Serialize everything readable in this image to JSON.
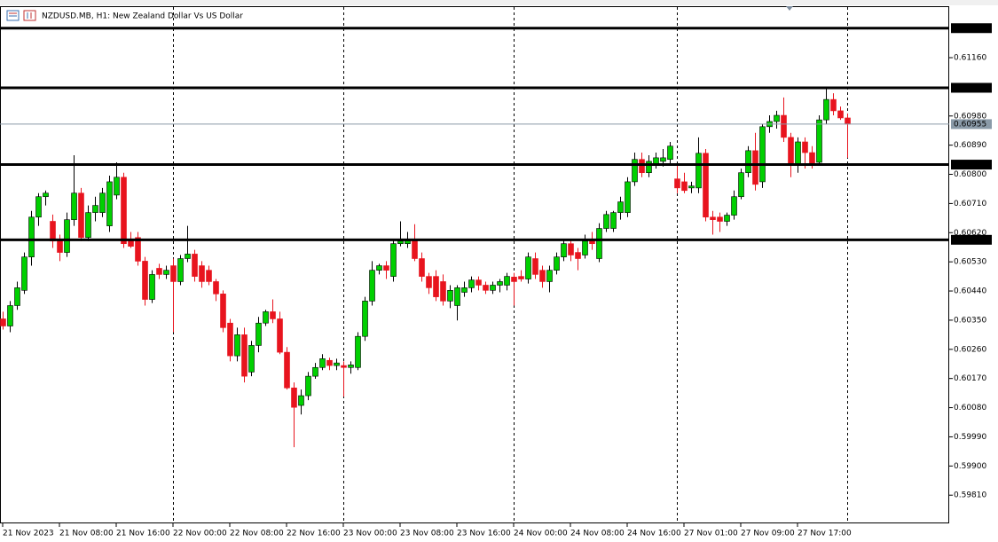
{
  "chart_data": {
    "type": "candlestick",
    "title": "NZDUSD.MB, H1:  New Zealand Dollar Vs US Dollar",
    "categories": [
      "21 Nov 2023",
      null,
      null,
      null,
      null,
      null,
      null,
      null,
      "21 Nov 08:00",
      null,
      null,
      null,
      null,
      null,
      null,
      null,
      "21 Nov 16:00",
      null,
      null,
      null,
      null,
      null,
      null,
      null,
      "22 Nov 00:00",
      null,
      null,
      null,
      null,
      null,
      null,
      null,
      "22 Nov 08:00",
      null,
      null,
      null,
      null,
      null,
      null,
      null,
      "22 Nov 16:00",
      null,
      null,
      null,
      null,
      null,
      null,
      null,
      "23 Nov 00:00",
      null,
      null,
      null,
      null,
      null,
      null,
      null,
      "23 Nov 08:00",
      null,
      null,
      null,
      null,
      null,
      null,
      null,
      "23 Nov 16:00",
      null,
      null,
      null,
      null,
      null,
      null,
      null,
      "24 Nov 00:00",
      null,
      null,
      null,
      null,
      null,
      null,
      null,
      "24 Nov 08:00",
      null,
      null,
      null,
      null,
      null,
      null,
      null,
      "24 Nov 16:00",
      null,
      null,
      null,
      null,
      null,
      null,
      null,
      "27 Nov 01:00",
      null,
      null,
      null,
      null,
      null,
      null,
      null,
      "27 Nov 09:00",
      null,
      null,
      null,
      null,
      null,
      null,
      null,
      "27 Nov 17:00",
      null,
      null,
      null,
      null,
      null,
      null,
      null
    ],
    "open": [
      0.60354,
      0.60332,
      0.60395,
      0.60442,
      0.60545,
      0.60668,
      0.60731,
      0.60655,
      0.60594,
      0.60559,
      0.6066,
      0.60742,
      0.60605,
      0.60682,
      0.60682,
      0.60641,
      0.60736,
      0.60791,
      0.606,
      0.60605,
      0.60532,
      0.60414,
      0.6051,
      0.60491,
      0.60518,
      0.60469,
      0.6054,
      0.60554,
      0.60518,
      0.60504,
      0.60469,
      0.60431,
      0.60341,
      0.6024,
      0.60305,
      0.6019,
      0.60272,
      0.60341,
      0.60376,
      0.60354,
      0.60251,
      0.60141,
      0.60087,
      0.60117,
      0.60177,
      0.60204,
      0.60226,
      0.6021,
      0.6021,
      0.60204,
      0.60204,
      0.603,
      0.60409,
      0.60504,
      0.60518,
      0.60485,
      0.60586,
      0.60586,
      0.606,
      0.6054,
      0.60485,
      0.60485,
      0.60469,
      0.60409,
      0.60395,
      0.60436,
      0.6045,
      0.60474,
      0.60458,
      0.60442,
      0.60458,
      0.60458,
      0.60483,
      0.60485,
      0.60477,
      0.6054,
      0.60504,
      0.60469,
      0.60504,
      0.60545,
      0.60586,
      0.60559,
      0.60551,
      0.60594,
      0.6054,
      0.60633,
      0.60633,
      0.60682,
      0.60682,
      0.60777,
      0.60846,
      0.60805,
      0.60832,
      0.6084,
      0.60846,
      0.60786,
      0.60777,
      0.60758,
      0.60758,
      0.60865,
      0.60668,
      0.60668,
      0.60655,
      0.60674,
      0.60731,
      0.60805,
      0.60873,
      0.60777,
      0.60947,
      0.60963,
      0.60982,
      0.60914,
      0.60827,
      0.609,
      0.60867,
      0.60837,
      0.60968,
      0.61031,
      0.60996,
      0.60974
    ],
    "high": [
      0.60376,
      0.60409,
      0.60469,
      0.60559,
      0.60687,
      0.60742,
      0.6075,
      0.60676,
      0.60614,
      0.60682,
      0.60859,
      0.60758,
      0.60704,
      0.60731,
      0.60758,
      0.60796,
      0.60837,
      0.60805,
      0.60622,
      0.60622,
      0.60545,
      0.60504,
      0.60524,
      0.60518,
      0.6054,
      0.60551,
      0.60641,
      0.60567,
      0.60532,
      0.60518,
      0.60477,
      0.60442,
      0.60354,
      0.60327,
      0.60327,
      0.60286,
      0.6036,
      0.60382,
      0.60414,
      0.60376,
      0.60267,
      0.60158,
      0.60136,
      0.6019,
      0.60218,
      0.60245,
      0.60234,
      0.60231,
      0.60223,
      0.60223,
      0.60313,
      0.60422,
      0.60532,
      0.60524,
      0.60532,
      0.606,
      0.60655,
      0.60622,
      0.60646,
      0.60559,
      0.60496,
      0.60504,
      0.60491,
      0.60458,
      0.60458,
      0.60469,
      0.60485,
      0.60485,
      0.60469,
      0.60469,
      0.60477,
      0.60496,
      0.60496,
      0.60504,
      0.60559,
      0.60559,
      0.60518,
      0.60518,
      0.60559,
      0.606,
      0.606,
      0.60573,
      0.60614,
      0.60622,
      0.60649,
      0.60687,
      0.60687,
      0.60731,
      0.60791,
      0.60867,
      0.60867,
      0.60859,
      0.60867,
      0.60878,
      0.609,
      0.60832,
      0.60805,
      0.60777,
      0.60914,
      0.60878,
      0.60687,
      0.60682,
      0.60682,
      0.6075,
      0.60818,
      0.60887,
      0.60928,
      0.60955,
      0.60982,
      0.60996,
      0.61037,
      0.60928,
      0.60914,
      0.60914,
      0.60887,
      0.60982,
      0.61064,
      0.6105,
      0.61009,
      0.60988
    ],
    "low": [
      0.60321,
      0.60313,
      0.60382,
      0.60431,
      0.60518,
      0.60641,
      0.60704,
      0.60573,
      0.60532,
      0.60545,
      0.60641,
      0.60594,
      0.60594,
      0.60655,
      0.60668,
      0.60622,
      0.60723,
      0.60573,
      0.60573,
      0.60518,
      0.60395,
      0.60403,
      0.60477,
      0.60477,
      0.60313,
      0.60458,
      0.60529,
      0.60469,
      0.6045,
      0.60458,
      0.60409,
      0.60313,
      0.60223,
      0.60223,
      0.60158,
      0.60177,
      0.60251,
      0.60332,
      0.60341,
      0.60245,
      0.60136,
      0.59958,
      0.60059,
      0.60103,
      0.60169,
      0.60196,
      0.60196,
      0.60196,
      0.60114,
      0.60185,
      0.60196,
      0.60286,
      0.60395,
      0.60491,
      0.60477,
      0.60469,
      0.60578,
      0.60573,
      0.60532,
      0.60469,
      0.60431,
      0.60409,
      0.60395,
      0.60387,
      0.60349,
      0.60422,
      0.60436,
      0.60442,
      0.60431,
      0.60431,
      0.60436,
      0.60442,
      0.60395,
      0.60469,
      0.60463,
      0.60477,
      0.6045,
      0.60436,
      0.60491,
      0.60532,
      0.60532,
      0.60504,
      0.6054,
      0.60567,
      0.60529,
      0.60622,
      0.60622,
      0.6066,
      0.60668,
      0.60764,
      0.60791,
      0.60791,
      0.60818,
      0.60824,
      0.60832,
      0.60742,
      0.60742,
      0.60742,
      0.60742,
      0.60655,
      0.60614,
      0.60622,
      0.60641,
      0.6066,
      0.60723,
      0.60791,
      0.6075,
      0.60758,
      0.60928,
      0.60941,
      0.609,
      0.60791,
      0.60805,
      0.60818,
      0.60818,
      0.60827,
      0.60955,
      0.60982,
      0.60968,
      0.60851
    ],
    "close": [
      0.60332,
      0.60395,
      0.6045,
      0.60545,
      0.60668,
      0.60731,
      0.60742,
      0.60594,
      0.60559,
      0.6066,
      0.60742,
      0.60605,
      0.60682,
      0.60704,
      0.60742,
      0.60777,
      0.60791,
      0.60586,
      0.60578,
      0.60532,
      0.60414,
      0.60491,
      0.60491,
      0.60504,
      0.60469,
      0.6054,
      0.60554,
      0.60485,
      0.60469,
      0.60469,
      0.60431,
      0.60327,
      0.6024,
      0.60305,
      0.60177,
      0.60272,
      0.60341,
      0.60376,
      0.60354,
      0.60251,
      0.60141,
      0.60081,
      0.60117,
      0.60177,
      0.60204,
      0.60231,
      0.6021,
      0.60218,
      0.60204,
      0.60212,
      0.603,
      0.60409,
      0.60504,
      0.60518,
      0.60504,
      0.60586,
      0.60594,
      0.606,
      0.6054,
      0.60485,
      0.6045,
      0.60422,
      0.60409,
      0.60442,
      0.6045,
      0.6045,
      0.60474,
      0.60458,
      0.60442,
      0.60458,
      0.60469,
      0.60485,
      0.60469,
      0.60477,
      0.60545,
      0.60491,
      0.60469,
      0.60504,
      0.60545,
      0.60586,
      0.60551,
      0.6054,
      0.60594,
      0.60586,
      0.60633,
      0.60676,
      0.60682,
      0.60715,
      0.60777,
      0.60846,
      0.60805,
      0.6084,
      0.60851,
      0.60851,
      0.60887,
      0.60758,
      0.6075,
      0.60764,
      0.60865,
      0.60668,
      0.6066,
      0.60655,
      0.60674,
      0.60731,
      0.60805,
      0.60873,
      0.60769,
      0.60947,
      0.60963,
      0.60982,
      0.60914,
      0.60827,
      0.609,
      0.60867,
      0.60832,
      0.60968,
      0.61031,
      0.60996,
      0.60974,
      0.60955
    ],
    "up_color": "#00d000",
    "down_color": "#e8141e",
    "ylim": [
      0.59723,
      0.61316
    ],
    "yticks": [
      {
        "value": 0.6116,
        "label": "0.61160"
      },
      {
        "value": 0.6098,
        "label": "0.60980"
      },
      {
        "value": 0.6089,
        "label": "0.60890"
      },
      {
        "value": 0.608,
        "label": "0.60800"
      },
      {
        "value": 0.6071,
        "label": "0.60710"
      },
      {
        "value": 0.6062,
        "label": "0.60620"
      },
      {
        "value": 0.6053,
        "label": "0.60530"
      },
      {
        "value": 0.6044,
        "label": "0.60440"
      },
      {
        "value": 0.6035,
        "label": "0.60350"
      },
      {
        "value": 0.6026,
        "label": "0.60260"
      },
      {
        "value": 0.6017,
        "label": "0.60170"
      },
      {
        "value": 0.6008,
        "label": "0.60080"
      },
      {
        "value": 0.5999,
        "label": "0.59990"
      },
      {
        "value": 0.599,
        "label": "0.59900"
      },
      {
        "value": 0.5981,
        "label": "0.59810"
      }
    ],
    "levels": [
      0.61251,
      0.61067,
      {
        "value": 0.6083,
        "label": "0.60830"
      },
      0.60598
    ],
    "bid": 0.60955,
    "grid": false
  }
}
